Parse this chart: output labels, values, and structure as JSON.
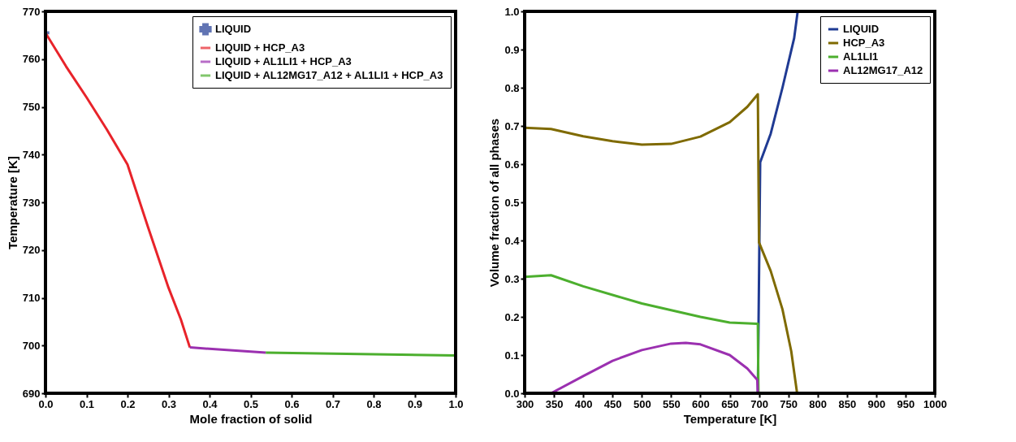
{
  "chart_data": [
    {
      "type": "line",
      "xlabel": "Mole fraction of solid",
      "ylabel": "Temperature [K]",
      "xlim": [
        0,
        1
      ],
      "ylim": [
        690,
        770
      ],
      "xticks": [
        {
          "value": 0,
          "label": "0.0"
        },
        0.1,
        0.2,
        0.3,
        0.4,
        0.5,
        0.6,
        0.7,
        0.8,
        0.9,
        {
          "value": 1,
          "label": "1.0"
        }
      ],
      "yticks": [
        690,
        700,
        710,
        720,
        730,
        740,
        750,
        760,
        770
      ],
      "grid": false,
      "legend": "top right",
      "series": [
        {
          "name": "LIQUID",
          "type": "scatter",
          "marker": "cross",
          "color": "#1f3a93",
          "x": [
            0
          ],
          "values": [
            765.5
          ]
        },
        {
          "name": "LIQUID + HCP_A3",
          "color": "#e8232a",
          "x": [
            0,
            0.05,
            0.1,
            0.15,
            0.2,
            0.25,
            0.3,
            0.33,
            0.352
          ],
          "values": [
            765.5,
            758.5,
            752,
            745.2,
            737.9,
            724.8,
            712.1,
            705.5,
            699.6
          ]
        },
        {
          "name": "LIQUID + AL1LI1 + HCP_A3",
          "color": "#9b30b0",
          "x": [
            0.352,
            0.537
          ],
          "values": [
            699.6,
            698.5
          ]
        },
        {
          "name": "LIQUID + AL12MG17_A12 + AL1LI1 + HCP_A3",
          "color": "#4caf2e",
          "x": [
            0.537,
            1
          ],
          "values": [
            698.5,
            697.9
          ]
        }
      ]
    },
    {
      "type": "line",
      "xlabel": "Temperature [K]",
      "ylabel": "Volume fraction of all phases",
      "xlim": [
        300,
        1000
      ],
      "ylim": [
        0,
        1
      ],
      "xticks": [
        300,
        350,
        400,
        450,
        500,
        550,
        600,
        650,
        700,
        750,
        800,
        850,
        900,
        950,
        1000
      ],
      "yticks": [
        {
          "value": 0,
          "label": "0.0"
        },
        0.1,
        0.2,
        0.3,
        0.4,
        0.5,
        0.6,
        0.7,
        0.8,
        0.9,
        {
          "value": 1,
          "label": "1.0"
        }
      ],
      "grid": false,
      "legend": "top right",
      "series": [
        {
          "name": "LIQUID",
          "color": "#1f3a93",
          "x": [
            698,
            702,
            720,
            740,
            760,
            766
          ],
          "values": [
            0,
            0.605,
            0.68,
            0.8,
            0.93,
            1
          ]
        },
        {
          "name": "HCP_A3",
          "color": "#7f6a00",
          "x": [
            300,
            345,
            400,
            450,
            500,
            550,
            600,
            650,
            680,
            698,
            700,
            720,
            740,
            755,
            765
          ],
          "values": [
            0.695,
            0.692,
            0.673,
            0.66,
            0.651,
            0.653,
            0.672,
            0.71,
            0.75,
            0.783,
            0.395,
            0.32,
            0.22,
            0.11,
            0
          ]
        },
        {
          "name": "AL1LI1",
          "color": "#4caf2e",
          "x": [
            300,
            345,
            400,
            500,
            600,
            650,
            697,
            698,
            699
          ],
          "values": [
            0.305,
            0.309,
            0.28,
            0.235,
            0.2,
            0.185,
            0.182,
            0.182,
            0
          ]
        },
        {
          "name": "AL12MG17_A12",
          "color": "#9b30b0",
          "x": [
            345,
            400,
            450,
            500,
            550,
            575,
            600,
            650,
            680,
            697,
            698
          ],
          "values": [
            0,
            0.045,
            0.085,
            0.113,
            0.13,
            0.132,
            0.128,
            0.1,
            0.065,
            0.035,
            0
          ]
        }
      ]
    }
  ]
}
